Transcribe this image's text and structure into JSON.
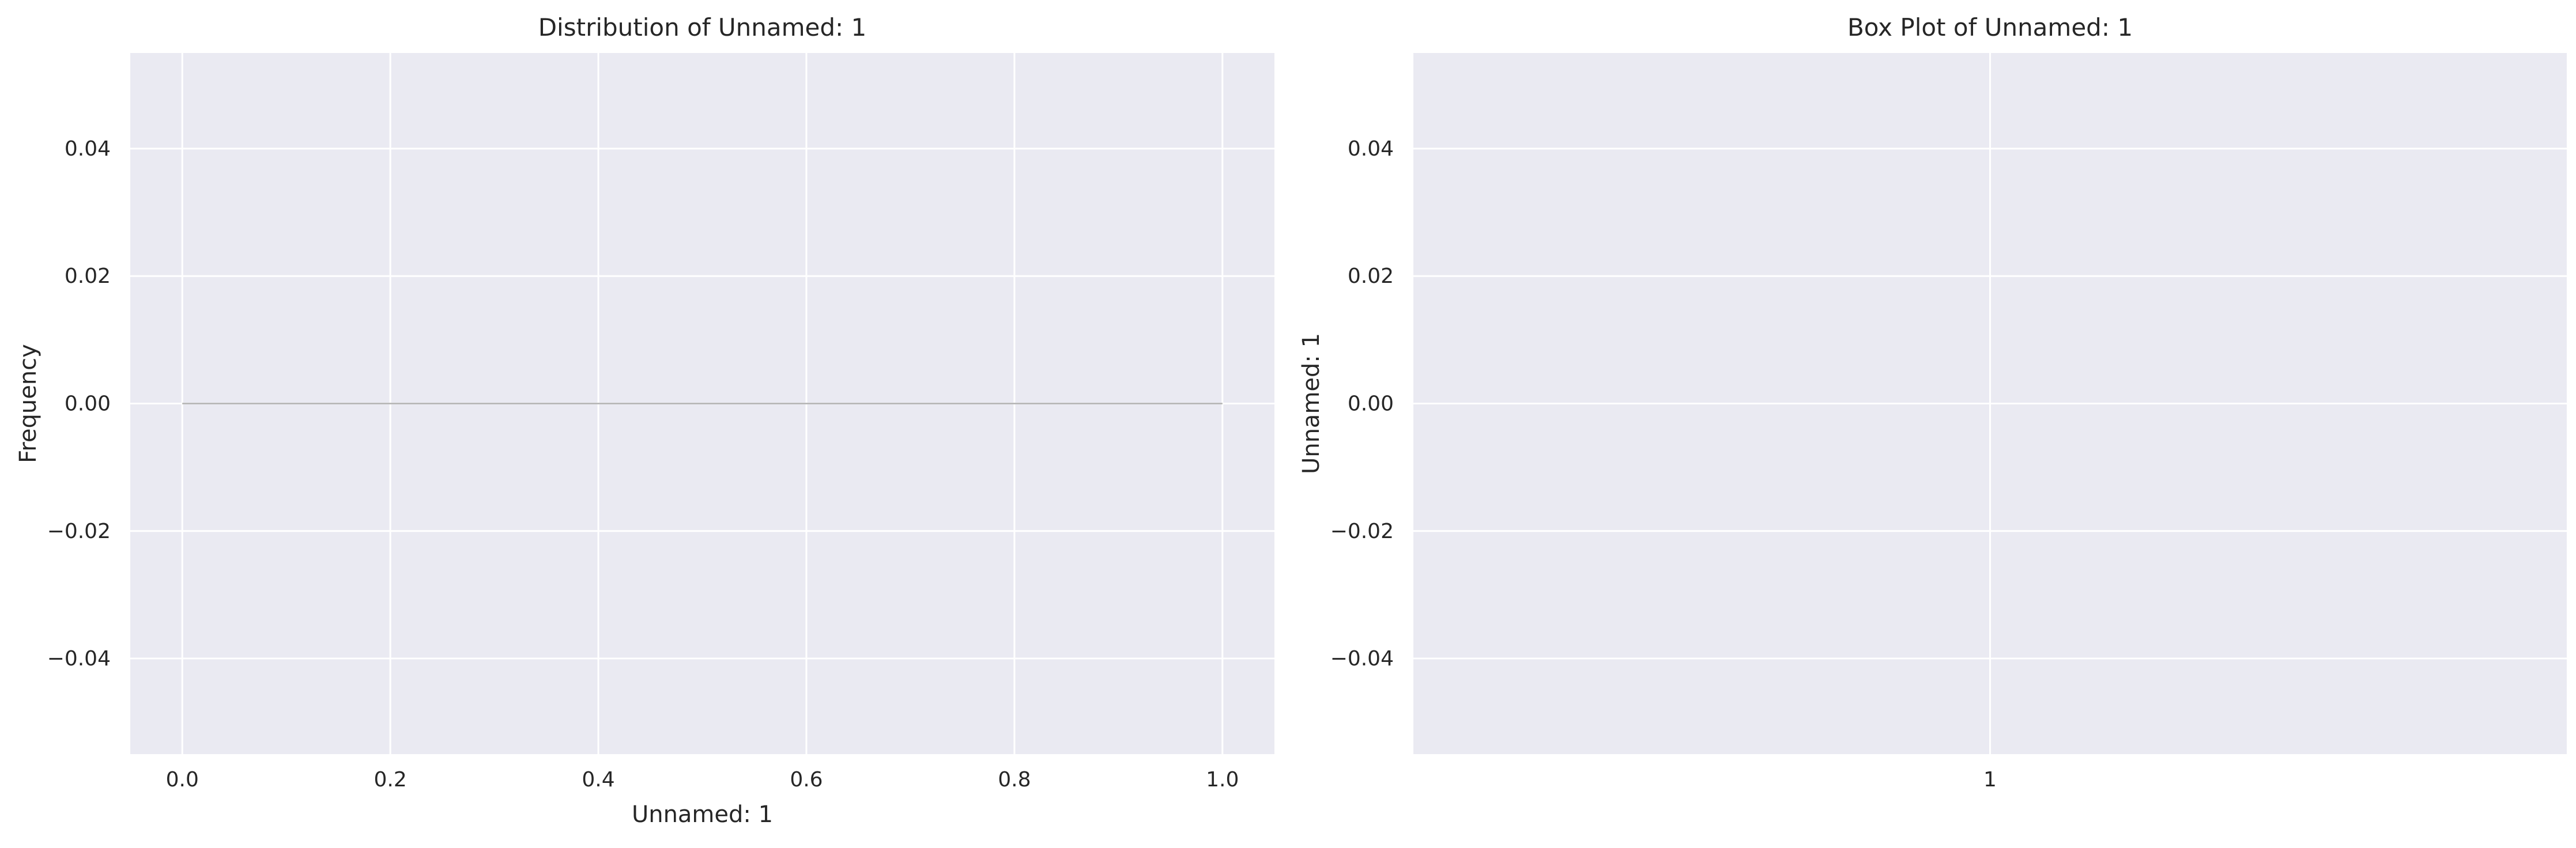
{
  "chart_data": [
    {
      "type": "bar",
      "title": "Distribution of Unnamed: 1",
      "xlabel": "Unnamed: 1",
      "ylabel": "Frequency",
      "xlim": [
        -0.05,
        1.05
      ],
      "ylim": [
        -0.055,
        0.055
      ],
      "xticks": [
        0.0,
        0.2,
        0.4,
        0.6,
        0.8,
        1.0
      ],
      "xtick_labels": [
        "0.0",
        "0.2",
        "0.4",
        "0.6",
        "0.8",
        "1.0"
      ],
      "yticks": [
        -0.04,
        -0.02,
        0.0,
        0.02,
        0.04
      ],
      "ytick_labels": [
        "−0.04",
        "−0.02",
        "0.00",
        "0.02",
        "0.04"
      ],
      "bins": [
        {
          "x0": 0.0,
          "x1": 1.0,
          "count": 0
        }
      ],
      "grid": true,
      "bar_edge_color": "#b0b0b0",
      "background_color": "#eaeaf2",
      "grid_color": "#ffffff"
    },
    {
      "type": "box",
      "title": "Box Plot of Unnamed: 1",
      "xlabel": "",
      "ylabel": "Unnamed: 1",
      "ylim": [
        -0.055,
        0.055
      ],
      "categories": [
        "1"
      ],
      "yticks": [
        -0.04,
        -0.02,
        0.0,
        0.02,
        0.04
      ],
      "ytick_labels": [
        "−0.04",
        "−0.02",
        "0.00",
        "0.02",
        "0.04"
      ],
      "values": [],
      "grid": true,
      "background_color": "#eaeaf2",
      "grid_color": "#ffffff"
    }
  ]
}
